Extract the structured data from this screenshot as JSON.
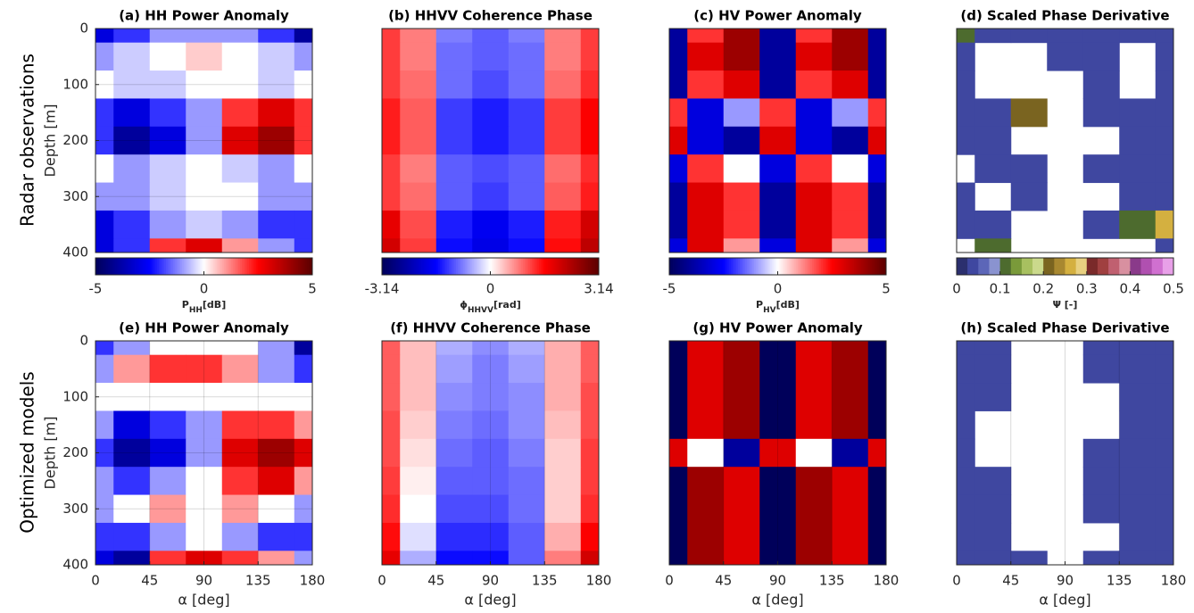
{
  "row_labels": [
    "Radar observations",
    "Optimized models"
  ],
  "chart_data": [
    {
      "type": "heatmap",
      "title": "(a) HH Power Anomaly",
      "ylabel": "Depth [m]",
      "x": [
        0,
        30,
        60,
        90,
        120,
        150,
        180
      ],
      "y": [
        0,
        50,
        100,
        150,
        200,
        250,
        300,
        350,
        400
      ],
      "xlim": [
        0,
        180
      ],
      "ylim": [
        400,
        0
      ],
      "yticks": [
        0,
        100,
        200,
        300,
        400
      ],
      "grid": true,
      "colormap": [
        "#00005a",
        "#0000ff",
        "#ffffff",
        "#ff0000",
        "#5a0000"
      ],
      "discrete": false,
      "colorbar": {
        "clim": [
          -5,
          5
        ],
        "ticks": [
          -5,
          0,
          5
        ],
        "label": "P",
        "sub": "HH",
        "unit": "[dB]"
      },
      "values": [
        [
          -3,
          -2,
          -1,
          -1,
          -1,
          -2,
          -4
        ],
        [
          -1,
          -0.5,
          0,
          0.5,
          0,
          -0.5,
          -1
        ],
        [
          0,
          -0.5,
          -0.5,
          0,
          0,
          -0.5,
          0
        ],
        [
          -2,
          -3,
          -2,
          -1,
          2,
          3,
          2
        ],
        [
          -2,
          -4,
          -3,
          -1,
          3,
          4,
          2
        ],
        [
          0,
          -1,
          -0.5,
          0,
          -0.5,
          -1,
          0
        ],
        [
          -1,
          -1,
          -0.5,
          0,
          0,
          -1,
          -1
        ],
        [
          -3,
          -2,
          -1,
          -0.5,
          -1,
          -2,
          -2
        ],
        [
          -3,
          -2,
          2,
          3,
          1,
          -1,
          -2
        ]
      ]
    },
    {
      "type": "heatmap",
      "title": "(b) HHVV Coherence Phase",
      "x": [
        0,
        30,
        60,
        90,
        120,
        150,
        180
      ],
      "y": [
        0,
        50,
        100,
        150,
        200,
        250,
        300,
        350,
        400
      ],
      "xlim": [
        0,
        180
      ],
      "ylim": [
        400,
        0
      ],
      "grid": true,
      "colormap": [
        "#00005a",
        "#0000ff",
        "#ffffff",
        "#ff0000",
        "#5a0000"
      ],
      "discrete": false,
      "colorbar": {
        "clim": [
          -3.14,
          3.14
        ],
        "ticks": [
          -3.14,
          0,
          3.14
        ],
        "label": "ϕ",
        "sub": "HHVV",
        "unit": "[rad]"
      },
      "values": [
        [
          1.2,
          0.8,
          -0.8,
          -1,
          -0.8,
          0.8,
          1.2
        ],
        [
          1.2,
          0.8,
          -0.9,
          -1,
          -0.9,
          0.8,
          1.2
        ],
        [
          1.2,
          0.9,
          -0.9,
          -1.1,
          -0.9,
          0.9,
          1.3
        ],
        [
          1.4,
          1,
          -1.2,
          -1.4,
          -1.2,
          1.2,
          1.6
        ],
        [
          1.4,
          1,
          -1.2,
          -1.4,
          -1.2,
          1.2,
          1.6
        ],
        [
          1.2,
          0.8,
          -1,
          -1.1,
          -1,
          0.9,
          1.3
        ],
        [
          1.2,
          0.9,
          -1,
          -1.2,
          -1,
          1,
          1.4
        ],
        [
          1.8,
          1.1,
          -1.4,
          -1.7,
          -1.4,
          1.4,
          2
        ],
        [
          2,
          1.2,
          -1.5,
          -1.8,
          -1.5,
          1.5,
          2.2
        ]
      ]
    },
    {
      "type": "heatmap",
      "title": "(c) HV Power Anomaly",
      "x": [
        0,
        30,
        60,
        90,
        120,
        150,
        180
      ],
      "y": [
        0,
        50,
        100,
        150,
        200,
        250,
        300,
        350,
        400
      ],
      "xlim": [
        0,
        180
      ],
      "ylim": [
        400,
        0
      ],
      "grid": true,
      "colormap": [
        "#00005a",
        "#0000ff",
        "#ffffff",
        "#ff0000",
        "#5a0000"
      ],
      "discrete": false,
      "colorbar": {
        "clim": [
          -5,
          5
        ],
        "ticks": [
          -5,
          0,
          5
        ],
        "label": "P",
        "sub": "HV",
        "unit": "[dB]"
      },
      "values": [
        [
          -4,
          2,
          4,
          -4,
          2,
          4,
          -4
        ],
        [
          -4,
          3,
          4,
          -4,
          3,
          4,
          -4
        ],
        [
          -4,
          2,
          3,
          -4,
          2,
          3,
          -4
        ],
        [
          2,
          -3,
          -1,
          2,
          -3,
          -1,
          2
        ],
        [
          3,
          -3,
          -4,
          3,
          -3,
          -4,
          3
        ],
        [
          -3,
          2,
          0,
          -3,
          2,
          0,
          -3
        ],
        [
          -4,
          3,
          2,
          -4,
          3,
          2,
          -4
        ],
        [
          -4,
          3,
          2,
          -4,
          3,
          2,
          -4
        ],
        [
          -3,
          3,
          1,
          -3,
          3,
          1,
          -3
        ]
      ]
    },
    {
      "type": "heatmap",
      "title": "(d) Scaled Phase Derivative",
      "x": [
        0,
        30,
        60,
        90,
        120,
        150,
        180
      ],
      "y": [
        0,
        50,
        100,
        150,
        200,
        250,
        300,
        350,
        400
      ],
      "xlim": [
        0,
        180
      ],
      "ylim": [
        400,
        0
      ],
      "grid": true,
      "colormap": [
        "#2b2f6e",
        "#3f47a0",
        "#5c66b8",
        "#8a93d0",
        "#4d6b2e",
        "#7a9a3a",
        "#a8c060",
        "#cbd98c",
        "#7a6420",
        "#a88830",
        "#d4b040",
        "#e8d080",
        "#7a2a2a",
        "#a04040",
        "#c06070",
        "#d890a0",
        "#8a3a8a",
        "#b050b0",
        "#d070d0",
        "#e8a0e8"
      ],
      "discrete": true,
      "colorbar": {
        "clim": [
          0,
          0.5
        ],
        "ticks": [
          0,
          0.1,
          0.2,
          0.3,
          0.4,
          0.5
        ],
        "label": "Ψ [-]"
      },
      "values": [
        [
          0.1,
          0.03,
          0.03,
          0.03,
          0.03,
          0.03,
          0.03
        ],
        [
          0.03,
          null,
          null,
          0.03,
          0.03,
          null,
          0.03
        ],
        [
          0.03,
          null,
          null,
          null,
          0.03,
          null,
          0.03
        ],
        [
          0.03,
          0.03,
          0.2,
          null,
          0.03,
          0.03,
          0.03
        ],
        [
          0.03,
          0.03,
          null,
          null,
          null,
          0.03,
          0.03
        ],
        [
          null,
          0.03,
          0.03,
          null,
          0.03,
          0.03,
          0.03
        ],
        [
          0.03,
          null,
          0.03,
          null,
          null,
          0.03,
          0.03
        ],
        [
          0.03,
          0.03,
          null,
          null,
          0.03,
          0.1,
          0.25
        ],
        [
          null,
          0.1,
          null,
          null,
          null,
          null,
          0.03
        ]
      ]
    },
    {
      "type": "heatmap",
      "title": "(e) HH Power Anomaly",
      "ylabel": "Depth [m]",
      "xlabel": "α [deg]",
      "x": [
        0,
        30,
        60,
        90,
        120,
        150,
        180
      ],
      "y": [
        0,
        50,
        100,
        150,
        200,
        250,
        300,
        350,
        400
      ],
      "xlim": [
        0,
        180
      ],
      "ylim": [
        400,
        0
      ],
      "xticks": [
        0,
        45,
        90,
        135,
        180
      ],
      "yticks": [
        0,
        100,
        200,
        300,
        400
      ],
      "grid": true,
      "colormap": [
        "#00005a",
        "#0000ff",
        "#ffffff",
        "#ff0000",
        "#5a0000"
      ],
      "discrete": false,
      "values": [
        [
          -2,
          -1,
          0,
          0,
          0,
          -1,
          -4
        ],
        [
          -1,
          1,
          2,
          2,
          1,
          -1,
          -2
        ],
        [
          0,
          0,
          0,
          0,
          0,
          0,
          0
        ],
        [
          -1,
          -3,
          -2,
          -1,
          2,
          2,
          1
        ],
        [
          -2,
          -4,
          -3,
          -1,
          3,
          4,
          3
        ],
        [
          -1,
          -2,
          -1,
          0,
          2,
          3,
          1
        ],
        [
          -1,
          0,
          1,
          0,
          1,
          0,
          -1
        ],
        [
          -2,
          -2,
          -1,
          0,
          -1,
          -2,
          -2
        ],
        [
          -3,
          -4,
          2,
          3,
          2,
          1,
          -1
        ]
      ]
    },
    {
      "type": "heatmap",
      "title": "(f) HHVV Coherence Phase",
      "xlabel": "α [deg]",
      "x": [
        0,
        30,
        60,
        90,
        120,
        150,
        180
      ],
      "y": [
        0,
        50,
        100,
        150,
        200,
        250,
        300,
        350,
        400
      ],
      "xlim": [
        0,
        180
      ],
      "ylim": [
        400,
        0
      ],
      "xticks": [
        0,
        45,
        90,
        135,
        180
      ],
      "grid": true,
      "colormap": [
        "#00005a",
        "#0000ff",
        "#ffffff",
        "#ff0000",
        "#5a0000"
      ],
      "discrete": false,
      "values": [
        [
          1,
          0.4,
          -0.5,
          -0.7,
          -0.5,
          0.5,
          1
        ],
        [
          1,
          0.4,
          -0.6,
          -0.8,
          -0.6,
          0.5,
          1
        ],
        [
          1,
          0.4,
          -0.7,
          -0.8,
          -0.7,
          0.5,
          1.1
        ],
        [
          1.1,
          0.3,
          -0.8,
          -0.9,
          -0.7,
          0.4,
          1.1
        ],
        [
          1.1,
          0.2,
          -0.9,
          -1,
          -0.8,
          0.3,
          1.2
        ],
        [
          1.2,
          0.1,
          -1,
          -1,
          -0.9,
          0.3,
          1.2
        ],
        [
          1.3,
          0,
          -1.1,
          -1.1,
          -0.9,
          0.3,
          1.3
        ],
        [
          1.5,
          -0.2,
          -1.3,
          -1.3,
          -1,
          0.5,
          1.6
        ],
        [
          1.8,
          -0.5,
          -1.5,
          -1.5,
          -1,
          0.8,
          2
        ]
      ]
    },
    {
      "type": "heatmap",
      "title": "(g) HV Power Anomaly",
      "xlabel": "α [deg]",
      "x": [
        0,
        30,
        60,
        90,
        120,
        150,
        180
      ],
      "y": [
        0,
        50,
        100,
        150,
        200,
        250,
        300,
        350,
        400
      ],
      "xlim": [
        0,
        180
      ],
      "ylim": [
        400,
        0
      ],
      "xticks": [
        0,
        45,
        90,
        135,
        180
      ],
      "grid": true,
      "colormap": [
        "#00005a",
        "#0000ff",
        "#ffffff",
        "#ff0000",
        "#5a0000"
      ],
      "discrete": false,
      "values": [
        [
          -5,
          3,
          4,
          -5,
          3,
          4,
          -5
        ],
        [
          -5,
          3,
          4,
          -5,
          3,
          4,
          -5
        ],
        [
          -5,
          3,
          4,
          -5,
          3,
          4,
          -5
        ],
        [
          -5,
          3,
          4,
          -5,
          3,
          4,
          -5
        ],
        [
          3,
          0,
          -4,
          3,
          0,
          -4,
          3
        ],
        [
          -5,
          4,
          3,
          -5,
          4,
          3,
          -5
        ],
        [
          -5,
          4,
          3,
          -5,
          4,
          3,
          -5
        ],
        [
          -5,
          4,
          3,
          -5,
          4,
          3,
          -5
        ],
        [
          -5,
          4,
          3,
          -5,
          4,
          3,
          -5
        ]
      ]
    },
    {
      "type": "heatmap",
      "title": "(h) Scaled Phase Derivative",
      "xlabel": "α [deg]",
      "x": [
        0,
        30,
        60,
        90,
        120,
        150,
        180
      ],
      "y": [
        0,
        50,
        100,
        150,
        200,
        250,
        300,
        350,
        400
      ],
      "xlim": [
        0,
        180
      ],
      "ylim": [
        400,
        0
      ],
      "xticks": [
        0,
        45,
        90,
        135,
        180
      ],
      "grid": true,
      "colormap": [
        "#2b2f6e",
        "#3f47a0",
        "#5c66b8",
        "#8a93d0",
        "#4d6b2e",
        "#7a9a3a",
        "#a8c060",
        "#cbd98c",
        "#7a6420",
        "#a88830",
        "#d4b040",
        "#e8d080",
        "#7a2a2a",
        "#a04040",
        "#c06070",
        "#d890a0",
        "#8a3a8a",
        "#b050b0",
        "#d070d0",
        "#e8a0e8"
      ],
      "discrete": true,
      "values": [
        [
          0.03,
          0.03,
          null,
          null,
          0.03,
          0.03,
          0.03
        ],
        [
          0.03,
          0.03,
          null,
          null,
          0.03,
          0.03,
          0.03
        ],
        [
          0.03,
          0.03,
          null,
          null,
          null,
          0.03,
          0.03
        ],
        [
          0.03,
          null,
          null,
          null,
          null,
          0.03,
          0.03
        ],
        [
          0.03,
          null,
          null,
          null,
          0.03,
          0.03,
          0.03
        ],
        [
          0.03,
          0.03,
          null,
          null,
          0.03,
          0.03,
          0.03
        ],
        [
          0.03,
          0.03,
          null,
          null,
          0.03,
          0.03,
          0.03
        ],
        [
          0.03,
          0.03,
          null,
          null,
          null,
          0.03,
          0.03
        ],
        [
          0.03,
          0.03,
          0.03,
          null,
          0.03,
          0.03,
          0.03
        ]
      ]
    }
  ]
}
